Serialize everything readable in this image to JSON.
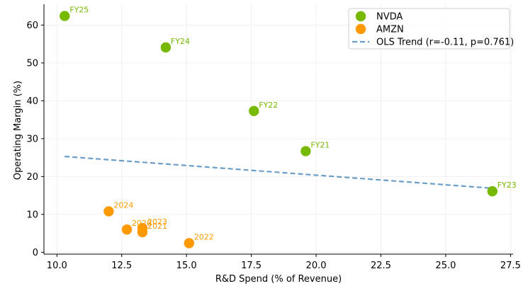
{
  "chart_data": {
    "type": "scatter",
    "title": "",
    "xlabel": "R&D Spend (% of Revenue)",
    "ylabel": "Operating Margin (%)",
    "xlim": [
      9.5,
      27.6
    ],
    "ylim": [
      -0.5,
      65.5
    ],
    "x_ticks": [
      10.0,
      12.5,
      15.0,
      17.5,
      20.0,
      22.5,
      25.0,
      27.5
    ],
    "x_tick_labels": [
      "10.0",
      "12.5",
      "15.0",
      "17.5",
      "20.0",
      "22.5",
      "25.0",
      "27.5"
    ],
    "y_ticks": [
      0,
      10,
      20,
      30,
      40,
      50,
      60
    ],
    "y_tick_labels": [
      "0",
      "10",
      "20",
      "30",
      "40",
      "50",
      "60"
    ],
    "grid": true,
    "legend_position": "top-right",
    "series": [
      {
        "name": "NVDA",
        "color": "#76b900",
        "points": [
          {
            "x": 10.3,
            "y": 62.4,
            "label": "FY25"
          },
          {
            "x": 14.2,
            "y": 54.1,
            "label": "FY24"
          },
          {
            "x": 17.6,
            "y": 37.3,
            "label": "FY22"
          },
          {
            "x": 19.6,
            "y": 26.7,
            "label": "FY21"
          },
          {
            "x": 26.8,
            "y": 16.1,
            "label": "FY23"
          }
        ]
      },
      {
        "name": "AMZN",
        "color": "#ff9900",
        "points": [
          {
            "x": 12.0,
            "y": 10.8,
            "label": "2024"
          },
          {
            "x": 12.7,
            "y": 6.0,
            "label": "2020"
          },
          {
            "x": 13.3,
            "y": 6.4,
            "label": "2023"
          },
          {
            "x": 13.3,
            "y": 5.3,
            "label": "2021"
          },
          {
            "x": 15.1,
            "y": 2.4,
            "label": "2022"
          }
        ]
      }
    ],
    "trend": {
      "name": "OLS Trend (r=-0.11, p=0.761)",
      "color": "#6a9ec8",
      "x": [
        10.3,
        26.8
      ],
      "y": [
        25.3,
        16.9
      ]
    }
  }
}
